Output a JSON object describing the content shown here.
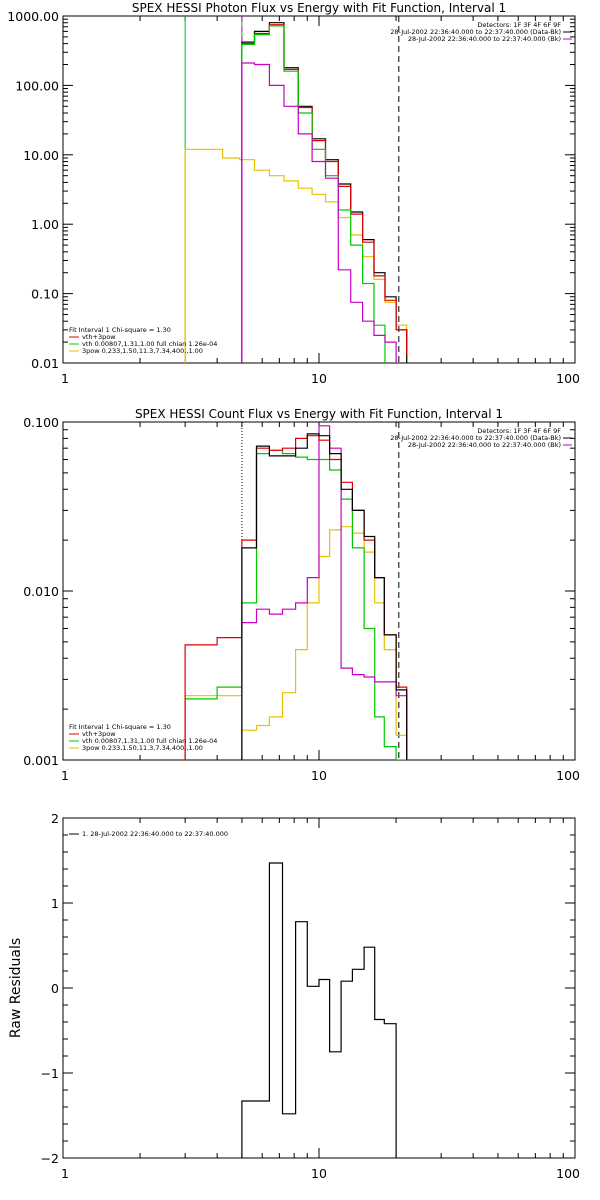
{
  "chart_data": [
    {
      "type": "line",
      "title": "SPEX HESSI Photon Flux vs Energy with Fit Function, Interval 1",
      "xlabel": "",
      "ylabel": "",
      "xscale": "log",
      "yscale": "log",
      "xlim": [
        1,
        100
      ],
      "ylim": [
        0.01,
        1000
      ],
      "x_ticks": [
        1,
        10,
        100
      ],
      "x_tick_labels": [
        "1",
        "10",
        "100"
      ],
      "y_ticks": [
        0.01,
        0.1,
        1,
        10,
        100,
        1000
      ],
      "y_tick_labels": [
        "0.01",
        "0.10",
        "1.00",
        "10.00",
        "100.00",
        "1000.00"
      ],
      "vlines": [
        {
          "x": 3,
          "color": "#00c800",
          "style": "solid"
        },
        {
          "x": 5,
          "color": "#00c800",
          "style": "solid"
        },
        {
          "x": 5,
          "color": "#c800c8",
          "style": "dashed"
        },
        {
          "x": 20.5,
          "color": "#000000",
          "style": "dashed"
        }
      ],
      "info_lines": [
        {
          "text": "Detectors: 1F 3F 4F 6F 9F",
          "color": "#000000"
        },
        {
          "text": "28-Jul-2002 22:36:40.000 to 22:37:40.000 (Data-Bk)",
          "color": "#000000"
        },
        {
          "text": "28-Jul-2002 22:36:40.000 to 22:37:40.000 (Bk)",
          "color": "#c800c8"
        }
      ],
      "legend": [
        {
          "text": "Fit Interval 1    Chi-square = 1.30",
          "color": "#000000"
        },
        {
          "text": "vth+3pow",
          "color": "#e00000"
        },
        {
          "text": "vth 0.00807,1.31,1.00  full chian 1.26e-04",
          "color": "#00c800"
        },
        {
          "text": "3pow 0.233,1.50,11.3,7.34,400.,1.00",
          "color": "#e8c000"
        }
      ],
      "series": [
        {
          "color": "#e8c000",
          "edges": [
            3,
            3.6,
            4.2,
            4.9,
            5.6,
            6.4,
            7.3,
            8.3,
            9.4,
            10.6,
            11.9,
            13.3,
            14.8,
            16.4,
            18.1,
            20,
            22
          ],
          "values": [
            12,
            12,
            9,
            8.5,
            6,
            5,
            4.2,
            3.3,
            2.7,
            2.1,
            1.25,
            0.7,
            0.34,
            0.16,
            0.075,
            0.035
          ]
        },
        {
          "color": "#000000",
          "edges": [
            5,
            5.6,
            6.4,
            7.3,
            8.3,
            9.4,
            10.6,
            11.9,
            13.3,
            14.8,
            16.4,
            18.1,
            20,
            22
          ],
          "values": [
            420,
            600,
            800,
            180,
            50,
            17,
            8.5,
            3.8,
            1.5,
            0.6,
            0.2,
            0.09,
            0.03
          ]
        },
        {
          "color": "#e00000",
          "edges": [
            5,
            5.6,
            6.4,
            7.3,
            8.3,
            9.4,
            10.6,
            11.9,
            13.3,
            14.8,
            16.4,
            18.1,
            20,
            22
          ],
          "values": [
            400,
            560,
            750,
            170,
            48,
            16,
            8,
            3.5,
            1.4,
            0.55,
            0.18,
            0.08,
            0.03,
            0.013
          ]
        },
        {
          "color": "#00c800",
          "edges": [
            5,
            5.6,
            6.4,
            7.3,
            8.3,
            9.4,
            10.6,
            11.9,
            13.3,
            14.8,
            16.4,
            18.1
          ],
          "values": [
            390,
            540,
            720,
            160,
            40,
            12,
            5,
            1.6,
            0.5,
            0.14,
            0.035
          ]
        },
        {
          "color": "#c800c8",
          "edges": [
            5,
            5.6,
            6.4,
            7.3,
            8.3,
            9.4,
            10.6,
            11.9,
            13.3,
            14.8,
            16.4,
            18.1,
            20
          ],
          "values": [
            210,
            200,
            100,
            50,
            20,
            8,
            4.6,
            0.22,
            0.075,
            0.04,
            0.025,
            0.02
          ]
        }
      ]
    },
    {
      "type": "line",
      "title": "SPEX HESSI Count Flux vs Energy with Fit Function, Interval 1",
      "xlabel": "",
      "ylabel": "",
      "xscale": "log",
      "yscale": "log",
      "xlim": [
        1,
        100
      ],
      "ylim": [
        0.001,
        0.1
      ],
      "x_ticks": [
        1,
        10,
        100
      ],
      "x_tick_labels": [
        "1",
        "10",
        "100"
      ],
      "y_ticks": [
        0.001,
        0.01,
        0.1
      ],
      "y_tick_labels": [
        "0.001",
        "0.010",
        "0.100"
      ],
      "vlines": [
        {
          "x": 5,
          "color": "#000000",
          "style": "dotted"
        },
        {
          "x": 20.5,
          "color": "#000000",
          "style": "dashed"
        }
      ],
      "info_lines": [
        {
          "text": "Detectors: 1F 3F 4F 6F 9F",
          "color": "#000000"
        },
        {
          "text": "28-Jul-2002 22:36:40.000 to 22:37:40.000 (Data-Bk)",
          "color": "#000000"
        },
        {
          "text": "28-Jul-2002 22:36:40.000 to 22:37:40.000 (Bk)",
          "color": "#c800c8"
        }
      ],
      "legend": [
        {
          "text": "Fit Interval 1    Chi-square = 1.30",
          "color": "#000000"
        },
        {
          "text": "vth+3pow",
          "color": "#e00000"
        },
        {
          "text": "vth 0.00807,1.31,1.00  full chian 1.26e-04",
          "color": "#00c800"
        },
        {
          "text": "3pow 0.233,1.50,11.3,7.34,400.,1.00",
          "color": "#e8c000"
        }
      ],
      "series": [
        {
          "color": "#e8c000",
          "edges": [
            3,
            4,
            5,
            5.7,
            6.4,
            7.2,
            8.1,
            9,
            10,
            11,
            12.2,
            13.5,
            15,
            16.5,
            18,
            20,
            22
          ],
          "values": [
            0.0024,
            0.0024,
            0.0015,
            0.0016,
            0.0018,
            0.0025,
            0.0045,
            0.0085,
            0.016,
            0.023,
            0.024,
            0.022,
            0.017,
            0.0085,
            0.0045,
            0.0014
          ]
        },
        {
          "color": "#00c800",
          "edges": [
            3,
            4,
            5,
            5.7,
            6.4,
            7.2,
            8.1,
            9,
            10,
            11,
            12.2,
            13.5,
            15,
            16.5,
            18,
            20,
            22
          ],
          "values": [
            0.0023,
            0.0027,
            0.0085,
            0.065,
            0.068,
            0.065,
            0.062,
            0.06,
            0.06,
            0.052,
            0.035,
            0.018,
            0.006,
            0.0018,
            0.0012,
            0.001
          ]
        },
        {
          "color": "#c800c8",
          "edges": [
            5,
            5.7,
            6.4,
            7.2,
            8.1,
            9,
            10,
            11,
            12.2,
            13.5,
            15,
            16.5,
            18,
            20,
            22
          ],
          "values": [
            0.0065,
            0.0078,
            0.0073,
            0.0078,
            0.0085,
            0.012,
            0.095,
            0.07,
            0.0035,
            0.0032,
            0.0031,
            0.0029,
            0.0029,
            0.0024
          ]
        },
        {
          "color": "#e00000",
          "edges": [
            3,
            4,
            5,
            5.7,
            6.4,
            7.2,
            8.1,
            9,
            10,
            11,
            12.2,
            13.5,
            15,
            16.5,
            18,
            20,
            22
          ],
          "values": [
            0.0048,
            0.0053,
            0.02,
            0.07,
            0.068,
            0.07,
            0.08,
            0.083,
            0.078,
            0.06,
            0.044,
            0.03,
            0.02,
            0.012,
            0.0055,
            0.0027
          ]
        },
        {
          "color": "#000000",
          "edges": [
            5,
            5.7,
            6.4,
            7.2,
            8.1,
            9,
            10,
            11,
            12.2,
            13.5,
            15,
            16.5,
            18,
            20,
            22
          ],
          "values": [
            0.018,
            0.072,
            0.063,
            0.063,
            0.07,
            0.085,
            0.083,
            0.065,
            0.04,
            0.03,
            0.021,
            0.012,
            0.0055,
            0.0026
          ]
        }
      ]
    },
    {
      "type": "line",
      "title": "",
      "xlabel": "",
      "ylabel": "Raw Residuals",
      "xscale": "log",
      "yscale": "linear",
      "xlim": [
        1,
        100
      ],
      "ylim": [
        -2,
        2
      ],
      "x_ticks": [
        1,
        10,
        100
      ],
      "x_tick_labels": [
        "1",
        "10",
        "100"
      ],
      "y_ticks": [
        -2,
        -1,
        0,
        1,
        2
      ],
      "y_tick_labels": [
        "−2",
        "−1",
        "0",
        "1",
        "2"
      ],
      "info_lines": [],
      "vlines": [],
      "legend": [
        {
          "text": "1. 28-Jul-2002 22:36:40.000 to 22:37:40.000",
          "color": "#000000"
        }
      ],
      "series": [
        {
          "color": "#000000",
          "edges": [
            5,
            5.7,
            6.4,
            7.2,
            8.1,
            9,
            10,
            11,
            12.2,
            13.5,
            15,
            16.5,
            18,
            20
          ],
          "values": [
            -1.33,
            -1.33,
            1.47,
            -1.48,
            0.78,
            0.02,
            0.1,
            -0.75,
            0.08,
            0.22,
            0.48,
            -0.37,
            -0.42
          ]
        }
      ]
    }
  ]
}
